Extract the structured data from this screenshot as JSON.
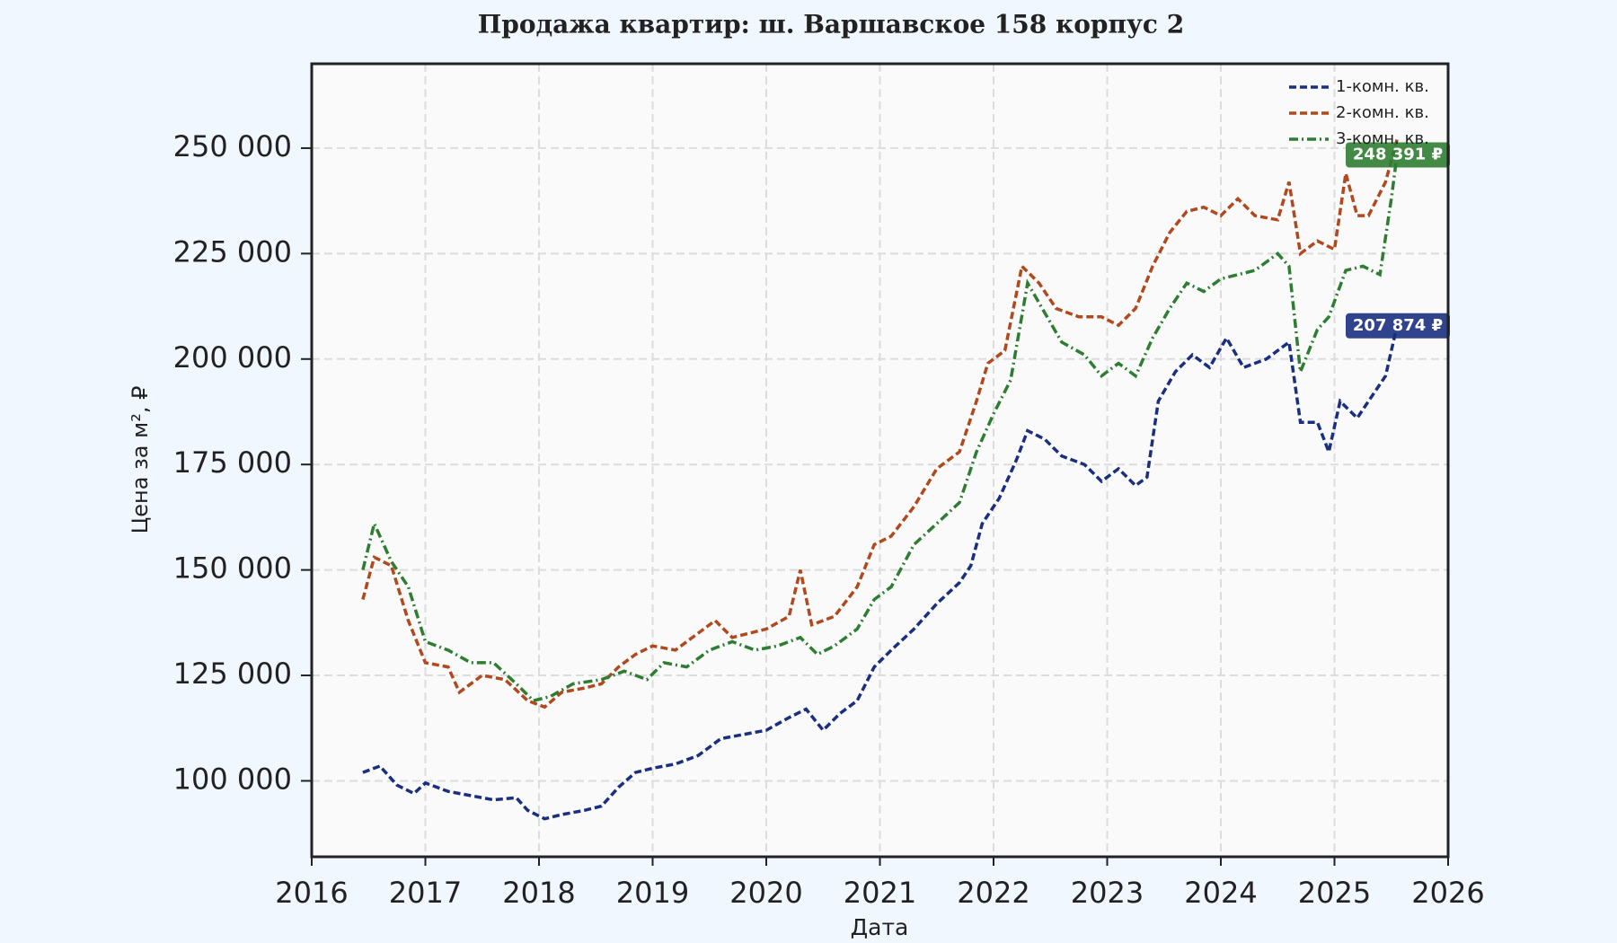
{
  "chart_data": {
    "type": "line",
    "title": "Продажа квартир: ш. Варшавское 158 корпус 2",
    "x_label": "Дата",
    "y_label": "Цена за м², ₽",
    "xlim": [
      2016,
      2026
    ],
    "xticks": [
      2016,
      2017,
      2018,
      2019,
      2020,
      2021,
      2022,
      2023,
      2024,
      2025,
      2026
    ],
    "ylim": [
      82000,
      270000
    ],
    "yticks": [
      {
        "value": 100000,
        "label": "100 000"
      },
      {
        "value": 125000,
        "label": "125 000"
      },
      {
        "value": 150000,
        "label": "150 000"
      },
      {
        "value": 175000,
        "label": "175 000"
      },
      {
        "value": 200000,
        "label": "200 000"
      },
      {
        "value": 225000,
        "label": "225 000"
      },
      {
        "value": 250000,
        "label": "250 000"
      }
    ],
    "grid": true,
    "legend": "upper right",
    "series": [
      {
        "name": "1-комн. кв.",
        "color": "#1a2f80",
        "dash": "8 4",
        "x": [
          2016.45,
          2016.6,
          2016.75,
          2016.9,
          2017.0,
          2017.2,
          2017.4,
          2017.6,
          2017.8,
          2017.9,
          2018.05,
          2018.2,
          2018.4,
          2018.55,
          2018.7,
          2018.85,
          2019.0,
          2019.2,
          2019.4,
          2019.6,
          2019.8,
          2020.0,
          2020.2,
          2020.35,
          2020.5,
          2020.65,
          2020.8,
          2020.95,
          2021.1,
          2021.3,
          2021.5,
          2021.7,
          2021.8,
          2021.9,
          2022.05,
          2022.2,
          2022.3,
          2022.45,
          2022.6,
          2022.8,
          2022.95,
          2023.1,
          2023.25,
          2023.35,
          2023.45,
          2023.6,
          2023.75,
          2023.9,
          2024.05,
          2024.2,
          2024.4,
          2024.6,
          2024.7,
          2024.85,
          2024.95,
          2025.05,
          2025.2,
          2025.3,
          2025.45,
          2025.55
        ],
        "values": [
          102000,
          103500,
          99000,
          97000,
          99500,
          97500,
          96500,
          95500,
          96000,
          93000,
          91000,
          92000,
          93000,
          94000,
          98500,
          102000,
          103000,
          104000,
          106000,
          110000,
          111000,
          112000,
          115000,
          117000,
          112000,
          116000,
          119000,
          127000,
          131000,
          136000,
          142000,
          147000,
          151000,
          161000,
          167000,
          176000,
          183000,
          181000,
          177000,
          175000,
          171000,
          174000,
          170000,
          172000,
          190000,
          197000,
          201000,
          198000,
          205000,
          198000,
          200000,
          204000,
          185000,
          185000,
          178000,
          190000,
          186000,
          190000,
          196000,
          207874
        ],
        "end_label": "207 874 ₽"
      },
      {
        "name": "2-комн. кв.",
        "color": "#b04a1e",
        "dash": "8 4",
        "x": [
          2016.45,
          2016.55,
          2016.7,
          2016.85,
          2017.0,
          2017.2,
          2017.3,
          2017.5,
          2017.7,
          2017.9,
          2018.05,
          2018.2,
          2018.4,
          2018.55,
          2018.7,
          2018.85,
          2019.0,
          2019.2,
          2019.4,
          2019.55,
          2019.7,
          2019.85,
          2020.0,
          2020.2,
          2020.3,
          2020.4,
          2020.6,
          2020.8,
          2020.95,
          2021.1,
          2021.3,
          2021.5,
          2021.7,
          2021.85,
          2021.95,
          2022.1,
          2022.25,
          2022.4,
          2022.55,
          2022.75,
          2022.95,
          2023.1,
          2023.25,
          2023.4,
          2023.55,
          2023.7,
          2023.85,
          2024.0,
          2024.15,
          2024.3,
          2024.5,
          2024.6,
          2024.7,
          2024.85,
          2025.0,
          2025.1,
          2025.2,
          2025.3,
          2025.45,
          2025.55
        ],
        "values": [
          143000,
          153000,
          151000,
          138000,
          128000,
          127000,
          121000,
          125000,
          124000,
          119000,
          117500,
          121000,
          122000,
          123000,
          127000,
          130000,
          132000,
          131000,
          135000,
          138000,
          134000,
          135000,
          136000,
          139000,
          150000,
          137000,
          139000,
          146000,
          156000,
          158000,
          165000,
          174000,
          178000,
          190000,
          199000,
          202000,
          222000,
          218000,
          212000,
          210000,
          210000,
          208000,
          212000,
          222000,
          230000,
          235000,
          236000,
          234000,
          238000,
          234000,
          233000,
          242000,
          225000,
          228000,
          226000,
          244000,
          234000,
          234000,
          242000,
          252000
        ]
      },
      {
        "name": "3-комн. кв.",
        "color": "#2e7d32",
        "dash": "10 4 2 4",
        "x": [
          2016.45,
          2016.55,
          2016.7,
          2016.85,
          2017.0,
          2017.2,
          2017.4,
          2017.6,
          2017.8,
          2017.95,
          2018.1,
          2018.3,
          2018.55,
          2018.75,
          2018.95,
          2019.1,
          2019.3,
          2019.5,
          2019.7,
          2019.9,
          2020.1,
          2020.3,
          2020.45,
          2020.6,
          2020.8,
          2020.95,
          2021.1,
          2021.3,
          2021.5,
          2021.7,
          2021.85,
          2022.0,
          2022.15,
          2022.3,
          2022.45,
          2022.6,
          2022.8,
          2022.95,
          2023.1,
          2023.25,
          2023.4,
          2023.55,
          2023.7,
          2023.85,
          2024.0,
          2024.15,
          2024.3,
          2024.5,
          2024.6,
          2024.7,
          2024.85,
          2024.95,
          2025.1,
          2025.25,
          2025.4,
          2025.5,
          2025.55
        ],
        "values": [
          150000,
          161000,
          152000,
          146000,
          133000,
          131000,
          128000,
          128000,
          123000,
          119000,
          120000,
          123000,
          124000,
          126000,
          124000,
          128000,
          127000,
          131000,
          133000,
          131000,
          132000,
          134000,
          130000,
          132000,
          136000,
          143000,
          146000,
          156000,
          161000,
          166000,
          178000,
          187000,
          195000,
          218000,
          211000,
          204000,
          201000,
          196000,
          199000,
          196000,
          205000,
          212000,
          218000,
          216000,
          219000,
          220000,
          221000,
          225000,
          222000,
          197000,
          207000,
          210000,
          221000,
          222000,
          220000,
          238000,
          248391
        ],
        "end_label": "248 391 ₽"
      }
    ]
  }
}
